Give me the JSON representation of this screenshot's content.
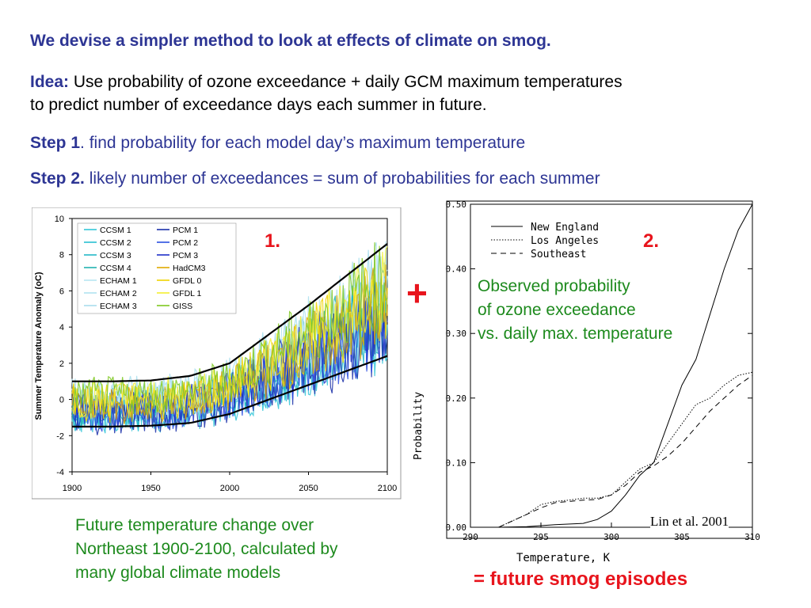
{
  "slide": {
    "heading": "We devise a simpler method to look at effects of climate on smog.",
    "idea_label": "Idea:",
    "idea_line1": " Use probability of ozone exceedance + daily GCM maximum temperatures",
    "idea_line2": "to predict number of exceedance days each summer in future.",
    "step1_label": "Step 1",
    "step1_text": ". find probability for each model day’s maximum temperature",
    "step2_label": "Step 2.",
    "step2_text": " likely number of exceedances = sum of probabilities for each summer",
    "plus": "+",
    "caption_left": [
      "Future temperature change over",
      "Northeast 1900-2100, calculated by",
      "many global climate models"
    ],
    "caption_right": [
      "Observed probability",
      "of ozone exceedance",
      "vs. daily max. temperature"
    ],
    "result": "= future smog episodes",
    "credit": "Lin et al. 2001"
  },
  "chart_data": [
    {
      "type": "line",
      "marker": "1.",
      "xlabel": "",
      "ylabel": "Summer Temperature Anomaly (oC)",
      "xlim": [
        1900,
        2100
      ],
      "ylim": [
        -4,
        10
      ],
      "x_ticks": [
        "1900",
        "1950",
        "2000",
        "2050",
        "2100"
      ],
      "y_ticks": [
        "10",
        "8",
        "6",
        "4",
        "2",
        "0",
        "-2",
        "-4"
      ],
      "legend_position": "top-left",
      "legend_col1": [
        {
          "name": "CCSM 1",
          "color": "#33c6d8"
        },
        {
          "name": "CCSM 2",
          "color": "#29c0d2"
        },
        {
          "name": "CCSM 3",
          "color": "#25b8c6"
        },
        {
          "name": "CCSM 4",
          "color": "#22b2b0"
        },
        {
          "name": "ECHAM 1",
          "color": "#b8e6f2"
        },
        {
          "name": "ECHAM 2",
          "color": "#b0e2f0"
        },
        {
          "name": "ECHAM 3",
          "color": "#a8deed"
        }
      ],
      "legend_col2": [
        {
          "name": "PCM 1",
          "color": "#1a2fa8"
        },
        {
          "name": "PCM 2",
          "color": "#2a4ee0"
        },
        {
          "name": "PCM 3",
          "color": "#2030c8"
        },
        {
          "name": "HadCM3",
          "color": "#e0a800"
        },
        {
          "name": "GFDL 0",
          "color": "#f0d400"
        },
        {
          "name": "GFDL 1",
          "color": "#f4ee30"
        },
        {
          "name": "GISS",
          "color": "#7ec820"
        }
      ],
      "envelope_upper": {
        "x": [
          1900,
          1925,
          1950,
          1975,
          2000,
          2025,
          2050,
          2075,
          2100
        ],
        "y": [
          1.0,
          1.0,
          1.05,
          1.3,
          2.0,
          3.6,
          5.2,
          6.9,
          8.6
        ]
      },
      "envelope_lower": {
        "x": [
          1900,
          1925,
          1950,
          1975,
          2000,
          2025,
          2050,
          2075,
          2100
        ],
        "y": [
          -1.5,
          -1.5,
          -1.45,
          -1.3,
          -0.8,
          0.0,
          0.8,
          1.6,
          2.4
        ]
      }
    },
    {
      "type": "line",
      "marker": "2.",
      "xlabel": "Temperature, K",
      "ylabel": "Probability",
      "xlim": [
        290,
        310
      ],
      "ylim": [
        0,
        0.5
      ],
      "x_ticks": [
        "290",
        "295",
        "300",
        "305",
        "310"
      ],
      "y_ticks": [
        "0.50",
        "0.40",
        "0.30",
        "0.20",
        "0.10",
        "0.00"
      ],
      "legend_position": "top-left",
      "series": [
        {
          "name": "New England",
          "style": "solid",
          "x": [
            290,
            292,
            294,
            296,
            298,
            299,
            300,
            301,
            302,
            303,
            304,
            305,
            306,
            307,
            308,
            309,
            310
          ],
          "y": [
            0.0,
            0.0,
            0.001,
            0.004,
            0.006,
            0.012,
            0.025,
            0.05,
            0.08,
            0.1,
            0.16,
            0.22,
            0.26,
            0.33,
            0.4,
            0.46,
            0.5
          ]
        },
        {
          "name": "Los Angeles",
          "style": "dotted",
          "x": [
            290,
            292,
            293,
            294,
            295,
            296,
            297,
            298,
            299,
            300,
            301,
            302,
            303,
            304,
            305,
            306,
            307,
            308,
            309,
            310
          ],
          "y": [
            0.0,
            0.0,
            0.01,
            0.02,
            0.035,
            0.04,
            0.042,
            0.045,
            0.045,
            0.05,
            0.07,
            0.09,
            0.1,
            0.13,
            0.16,
            0.19,
            0.2,
            0.22,
            0.235,
            0.24
          ]
        },
        {
          "name": "Southeast",
          "style": "dashed",
          "x": [
            290,
            292,
            293,
            294,
            295,
            296,
            297,
            298,
            299,
            300,
            301,
            302,
            303,
            304,
            305,
            306,
            307,
            308,
            309,
            310
          ],
          "y": [
            0.0,
            0.0,
            0.01,
            0.02,
            0.03,
            0.038,
            0.04,
            0.042,
            0.043,
            0.05,
            0.065,
            0.085,
            0.095,
            0.11,
            0.13,
            0.155,
            0.18,
            0.2,
            0.22,
            0.235
          ]
        }
      ]
    }
  ]
}
